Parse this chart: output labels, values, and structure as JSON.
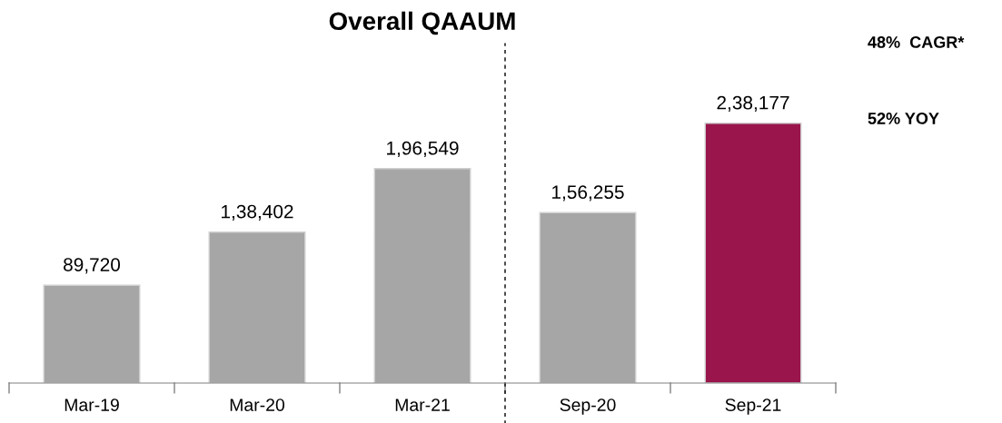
{
  "chart_data": {
    "type": "bar",
    "title": "Overall QAAUM",
    "categories": [
      "Mar-19",
      "Mar-20",
      "Mar-21",
      "Sep-20",
      "Sep-21"
    ],
    "values": [
      89720,
      138402,
      196549,
      156255,
      238177
    ],
    "colors": [
      "#a6a6a6",
      "#a6a6a6",
      "#a6a6a6",
      "#a6a6a6",
      "#99154b"
    ],
    "value_labels": [
      "89,720",
      "1,38,402",
      "1,96,549",
      "1,56,255",
      "2,38,177"
    ],
    "annotations": [
      "48%  CAGR*",
      "52% YOY"
    ],
    "grid": false,
    "legend": false
  }
}
